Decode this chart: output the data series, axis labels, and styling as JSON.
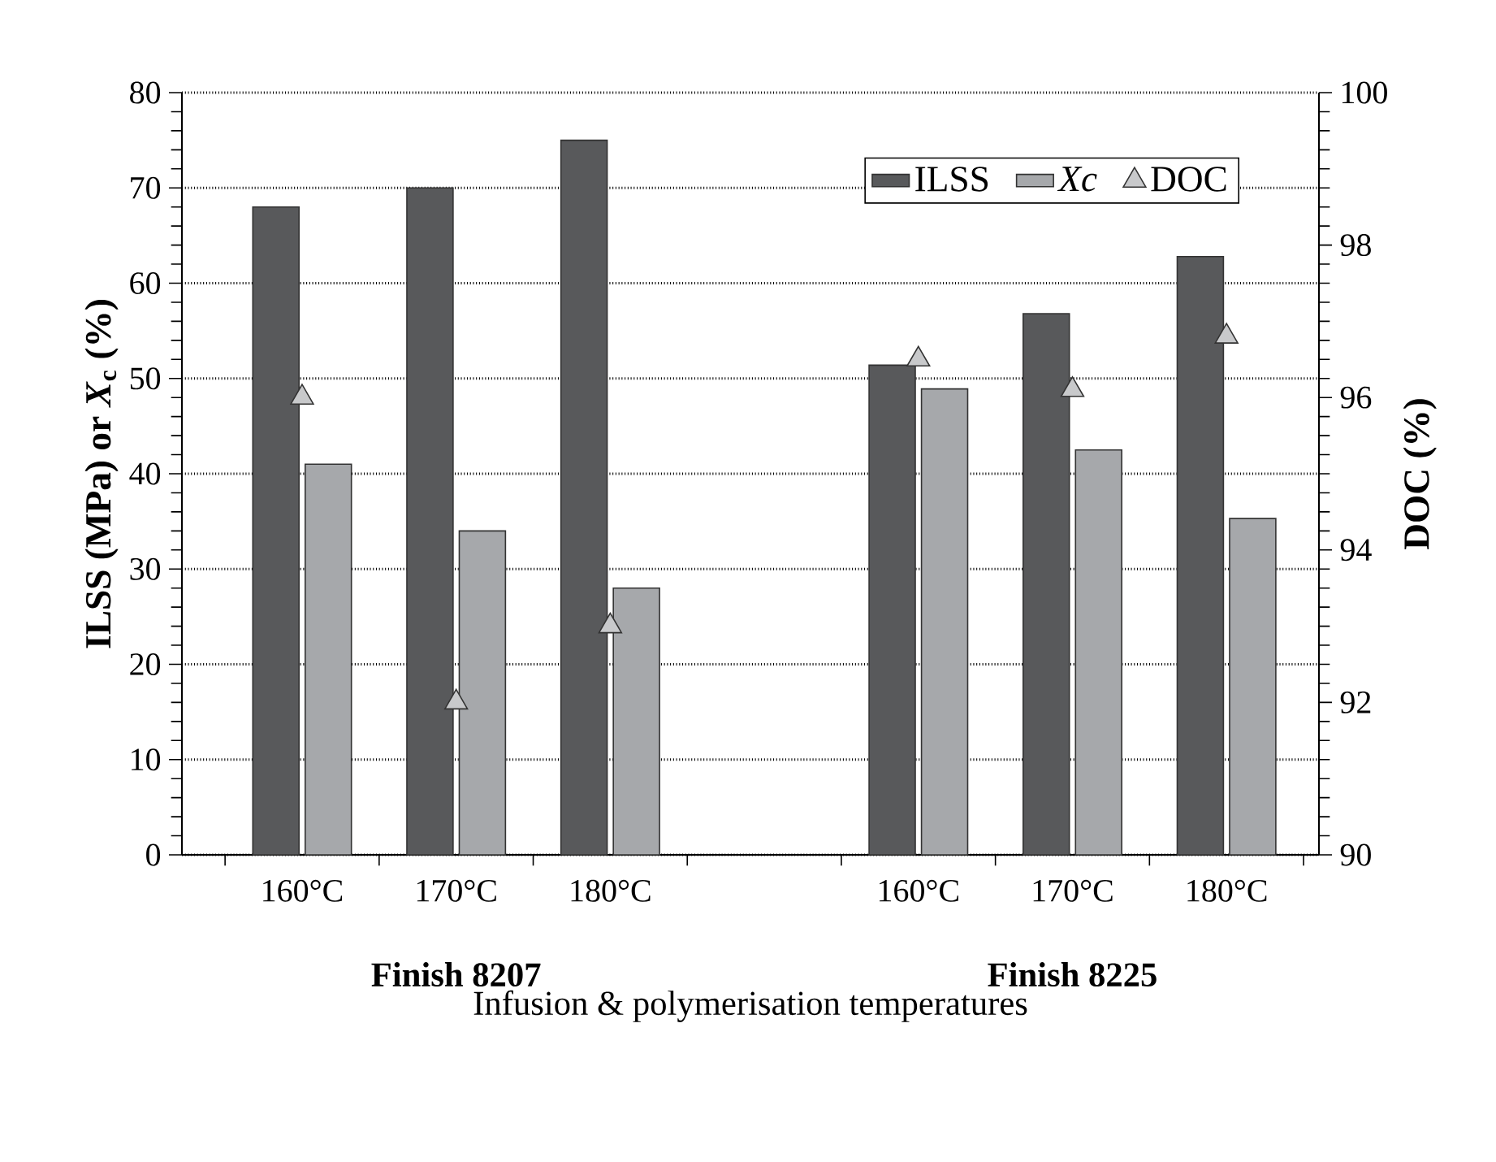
{
  "chart_data": {
    "type": "bar",
    "categories": [
      "160°C",
      "170°C",
      "180°C",
      null,
      "160°C",
      "170°C",
      "180°C"
    ],
    "series": [
      {
        "name": "ILSS",
        "color": "#58595b",
        "values": [
          68,
          70,
          75,
          null,
          51.4,
          56.8,
          62.8
        ]
      },
      {
        "name": "*Xc*",
        "color": "#a6a8ab",
        "values": [
          41,
          34,
          28,
          null,
          48.9,
          42.5,
          35.3
        ]
      },
      {
        "name": "DOC",
        "type": "scatter",
        "axis": "y2",
        "marker": "triangle",
        "color": "#c8c9cb",
        "values": [
          96.0,
          92.0,
          93.0,
          null,
          96.5,
          96.1,
          96.8
        ]
      }
    ],
    "xlabel": "Infusion & polymerisation temperatures",
    "ylabel": "ILSS (MPa)     or     *X*$_{c}$ (%)",
    "y2label": "DOC (%)",
    "annotations": [
      "Finish 8207",
      "Finish 8225"
    ],
    "ylim": [
      0,
      80
    ],
    "yticks": [
      0,
      10,
      20,
      30,
      40,
      50,
      60,
      70,
      80
    ],
    "y2lim": [
      90,
      100
    ],
    "y2ticks": [
      90,
      92,
      94,
      96,
      98,
      100
    ],
    "grid": "y",
    "legend": "top right"
  }
}
